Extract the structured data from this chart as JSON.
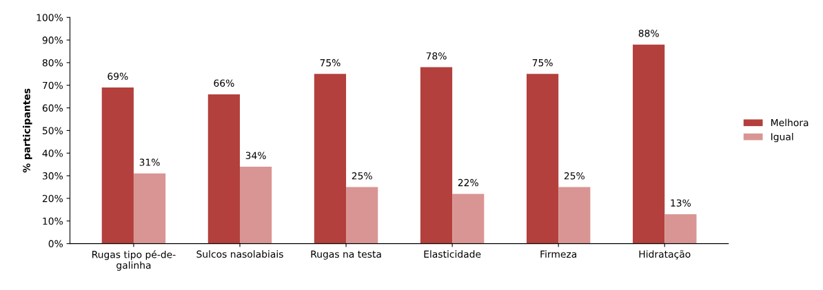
{
  "chart_data": {
    "type": "bar",
    "ylabel": "% participantes",
    "categories": [
      "Rugas tipo pé-de-\ngalinha",
      "Sulcos nasolabiais",
      "Rugas na testa",
      "Elasticidade",
      "Firmeza",
      "Hidratação"
    ],
    "series": [
      {
        "name": "Melhora",
        "color": "#b3403c",
        "values": [
          69,
          66,
          75,
          78,
          75,
          88
        ],
        "value_labels": [
          "69%",
          "66%",
          "75%",
          "78%",
          "75%",
          "88%"
        ]
      },
      {
        "name": "Igual",
        "color": "#d99593",
        "values": [
          31,
          34,
          25,
          22,
          25,
          13
        ],
        "value_labels": [
          "31%",
          "34%",
          "25%",
          "22%",
          "25%",
          "13%"
        ]
      }
    ],
    "ylim": [
      0,
      100
    ],
    "yticks": [
      {
        "value": 0,
        "label": "0%"
      },
      {
        "value": 10,
        "label": "10%"
      },
      {
        "value": 20,
        "label": "20%"
      },
      {
        "value": 30,
        "label": "30%"
      },
      {
        "value": 40,
        "label": "40%"
      },
      {
        "value": 50,
        "label": "50%"
      },
      {
        "value": 60,
        "label": "60%"
      },
      {
        "value": 70,
        "label": "70%"
      },
      {
        "value": 80,
        "label": "80%"
      },
      {
        "value": 90,
        "label": "90%"
      },
      {
        "value": 100,
        "label": "100%"
      }
    ],
    "grid": false,
    "legend": "right"
  }
}
